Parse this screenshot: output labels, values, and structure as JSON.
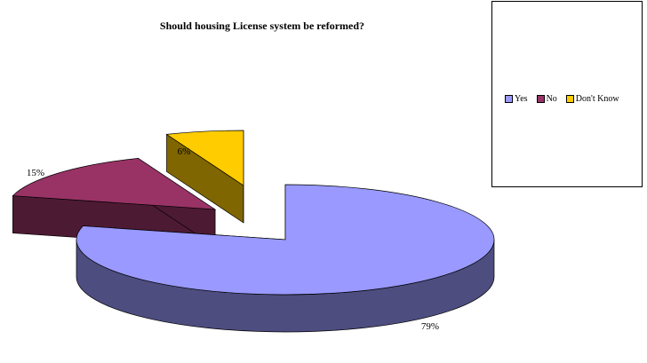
{
  "chart_data": {
    "type": "pie",
    "title": "Should housing License system be reformed?",
    "categories": [
      "Yes",
      "No",
      "Don't Know"
    ],
    "values": [
      79,
      15,
      6
    ],
    "data_labels": [
      "79%",
      "15%",
      "6%"
    ],
    "colors": [
      "#9999FF",
      "#993366",
      "#FFCC00"
    ],
    "side_colors": [
      "#4D4D80",
      "#4D1A33",
      "#806600"
    ],
    "style": "3d-exploded",
    "legend_position": "right"
  }
}
